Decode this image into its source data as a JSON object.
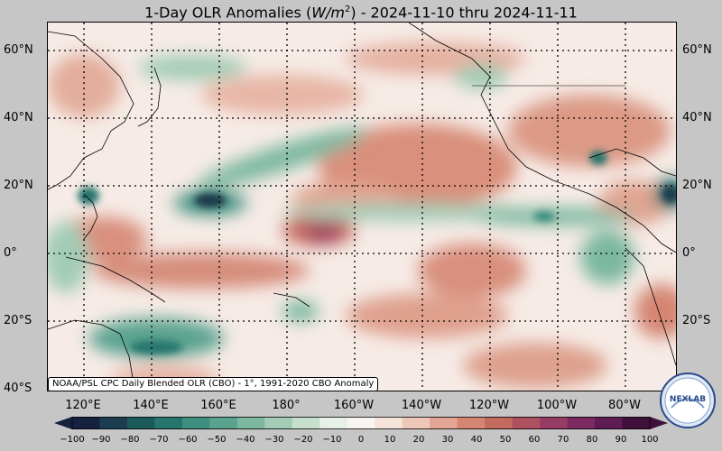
{
  "title": {
    "text_main": "1-Day OLR Anomalies (",
    "unit_w": "W/m",
    "unit_exp": "2",
    "text_tail": ") - 2024-11-10 thru 2024-11-11"
  },
  "map": {
    "lat_labels": [
      "60°N",
      "40°N",
      "20°N",
      "0°",
      "20°S",
      "40°S"
    ],
    "lon_labels": [
      "120°E",
      "140°E",
      "160°E",
      "180°",
      "160°W",
      "140°W",
      "120°W",
      "100°W",
      "80°W"
    ],
    "source_note": "NOAA/PSL CPC Daily Blended OLR (CBO) - 1°, 1991-2020 CBO Anomaly"
  },
  "colorbar": {
    "ticks": [
      "−100",
      "−90",
      "−80",
      "−70",
      "−60",
      "−50",
      "−40",
      "−30",
      "−20",
      "−10",
      "0",
      "10",
      "20",
      "30",
      "40",
      "50",
      "60",
      "70",
      "80",
      "90",
      "100"
    ],
    "colors": [
      "#15213f",
      "#1b3d4f",
      "#1d5a5c",
      "#27766e",
      "#3d8f7f",
      "#5aa38f",
      "#7cb8a0",
      "#a2ccb6",
      "#c6e0cd",
      "#e6f0e6",
      "#f7f4f2",
      "#f6e3da",
      "#eec7b8",
      "#e3a594",
      "#d58673",
      "#c36a5f",
      "#ad5160",
      "#973d65",
      "#7c2a61",
      "#5e1c52",
      "#3f1039"
    ]
  },
  "logo": {
    "text": "NEXLAB"
  }
}
